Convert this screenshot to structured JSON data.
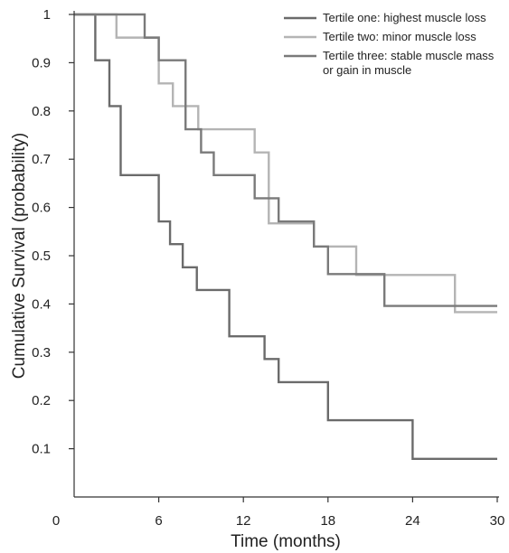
{
  "chart_data": {
    "type": "line",
    "step": true,
    "title": "",
    "xlabel": "Time (months)",
    "ylabel": "Cumulative Survival (probability)",
    "xlim": [
      0,
      30
    ],
    "ylim": [
      0,
      1
    ],
    "x_ticks": [
      0,
      6,
      12,
      18,
      24,
      30
    ],
    "y_ticks": [
      0.1,
      0.2,
      0.3,
      0.4,
      0.5,
      0.6,
      0.7,
      0.8,
      0.9,
      1
    ],
    "y_tick_labels": [
      "0.1",
      "0.2",
      "0.3",
      "0.4",
      "0.5",
      "0.6",
      "0.7",
      "0.8",
      "0.9",
      "1"
    ],
    "grid": false,
    "legend": "top-right",
    "series": [
      {
        "name": "Tertile one: highest muscle loss",
        "color": "#6b6b6b",
        "x": [
          0,
          1.5,
          2.5,
          3.3,
          6.0,
          6.8,
          7.7,
          8.7,
          11.0,
          13.5,
          14.5,
          18.0,
          24.0,
          30.0
        ],
        "y": [
          1.0,
          0.905,
          0.81,
          0.667,
          0.571,
          0.524,
          0.476,
          0.429,
          0.333,
          0.286,
          0.238,
          0.159,
          0.079,
          0.079
        ]
      },
      {
        "name": "Tertile two: minor muscle loss",
        "color": "#b4b4b4",
        "x": [
          0,
          3.0,
          6.0,
          7.0,
          8.8,
          12.8,
          13.8,
          17.0,
          20.0,
          27.0,
          30.0
        ],
        "y": [
          1.0,
          0.952,
          0.857,
          0.81,
          0.762,
          0.714,
          0.567,
          0.519,
          0.46,
          0.383,
          0.383
        ]
      },
      {
        "name": "Tertile three: stable muscle mass or gain in muscle",
        "name_lines": [
          "Tertile three: stable muscle mass",
          "or gain in muscle"
        ],
        "color": "#7a7a7a",
        "x": [
          0,
          5.0,
          6.0,
          7.9,
          9.0,
          9.9,
          12.8,
          14.5,
          17.0,
          18.0,
          22.0,
          30.0
        ],
        "y": [
          1.0,
          0.952,
          0.905,
          0.762,
          0.714,
          0.667,
          0.619,
          0.571,
          0.519,
          0.462,
          0.396,
          0.396
        ]
      }
    ]
  }
}
